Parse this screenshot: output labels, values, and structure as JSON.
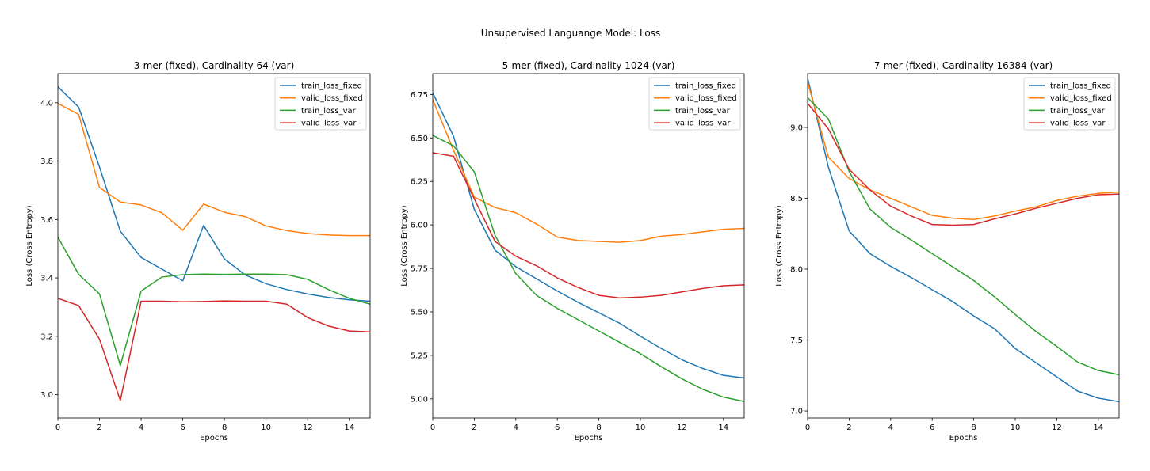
{
  "figure": {
    "suptitle": "Unsupervised Languange Model: Loss"
  },
  "colors": {
    "train_loss_fixed": "#1f77b4",
    "valid_loss_fixed": "#ff7f0e",
    "train_loss_var": "#2ca02c",
    "valid_loss_var": "#d62728"
  },
  "chart_data": [
    {
      "type": "line",
      "title": "3-mer (fixed), Cardinality 64 (var)",
      "xlabel": "Epochs",
      "ylabel": "Loss (Cross Entropy)",
      "xlim": [
        0,
        15
      ],
      "ylim": [
        2.92,
        4.1
      ],
      "xticks": [
        0,
        2,
        4,
        6,
        8,
        10,
        12,
        14
      ],
      "yticks": [
        3.0,
        3.2,
        3.4,
        3.6,
        3.8,
        4.0
      ],
      "legend": "top-right",
      "x": [
        0,
        1,
        2,
        3,
        4,
        5,
        6,
        7,
        8,
        9,
        10,
        11,
        12,
        13,
        14,
        15
      ],
      "series": [
        {
          "name": "train_loss_fixed",
          "values": [
            4.055,
            3.985,
            3.78,
            3.56,
            3.47,
            3.43,
            3.39,
            3.58,
            3.465,
            3.41,
            3.38,
            3.36,
            3.345,
            3.333,
            3.325,
            3.32
          ]
        },
        {
          "name": "valid_loss_fixed",
          "values": [
            3.998,
            3.96,
            3.71,
            3.66,
            3.65,
            3.623,
            3.563,
            3.653,
            3.625,
            3.61,
            3.578,
            3.562,
            3.552,
            3.547,
            3.545,
            3.545
          ]
        },
        {
          "name": "train_loss_var",
          "values": [
            3.54,
            3.412,
            3.345,
            3.1,
            3.355,
            3.403,
            3.411,
            3.413,
            3.412,
            3.413,
            3.413,
            3.411,
            3.395,
            3.36,
            3.33,
            3.31
          ]
        },
        {
          "name": "valid_loss_var",
          "values": [
            3.33,
            3.305,
            3.19,
            2.98,
            3.32,
            3.32,
            3.318,
            3.319,
            3.321,
            3.32,
            3.32,
            3.31,
            3.264,
            3.235,
            3.218,
            3.215
          ]
        }
      ]
    },
    {
      "type": "line",
      "title": "5-mer (fixed), Cardinality 1024 (var)",
      "xlabel": "Epochs",
      "ylabel": "Loss (Cross Entropy)",
      "xlim": [
        0,
        15
      ],
      "ylim": [
        4.89,
        6.87
      ],
      "xticks": [
        0,
        2,
        4,
        6,
        8,
        10,
        12,
        14
      ],
      "yticks": [
        5.0,
        5.25,
        5.5,
        5.75,
        6.0,
        6.25,
        6.5,
        6.75
      ],
      "legend": "top-right",
      "x": [
        0,
        1,
        2,
        3,
        4,
        5,
        6,
        7,
        8,
        9,
        10,
        11,
        12,
        13,
        14,
        15
      ],
      "series": [
        {
          "name": "train_loss_fixed",
          "values": [
            6.76,
            6.51,
            6.09,
            5.855,
            5.76,
            5.69,
            5.62,
            5.555,
            5.495,
            5.435,
            5.36,
            5.29,
            5.225,
            5.175,
            5.135,
            5.12
          ]
        },
        {
          "name": "valid_loss_fixed",
          "values": [
            6.72,
            6.43,
            6.16,
            6.1,
            6.07,
            6.005,
            5.93,
            5.91,
            5.905,
            5.9,
            5.91,
            5.935,
            5.945,
            5.96,
            5.975,
            5.98
          ]
        },
        {
          "name": "train_loss_var",
          "values": [
            6.515,
            6.455,
            6.305,
            5.94,
            5.72,
            5.595,
            5.52,
            5.455,
            5.39,
            5.325,
            5.26,
            5.185,
            5.115,
            5.055,
            5.01,
            4.985
          ]
        },
        {
          "name": "valid_loss_var",
          "values": [
            6.415,
            6.395,
            6.15,
            5.905,
            5.82,
            5.765,
            5.695,
            5.64,
            5.595,
            5.58,
            5.585,
            5.595,
            5.615,
            5.635,
            5.65,
            5.655
          ]
        }
      ]
    },
    {
      "type": "line",
      "title": "7-mer (fixed), Cardinality 16384 (var)",
      "xlabel": "Epochs",
      "ylabel": "Loss (Cross Entropy)",
      "xlim": [
        0,
        15
      ],
      "ylim": [
        6.95,
        9.38
      ],
      "xticks": [
        0,
        2,
        4,
        6,
        8,
        10,
        12,
        14
      ],
      "yticks": [
        7.0,
        7.5,
        8.0,
        8.5,
        9.0
      ],
      "legend": "top-right",
      "x": [
        0,
        1,
        2,
        3,
        4,
        5,
        6,
        7,
        8,
        9,
        10,
        11,
        12,
        13,
        14,
        15
      ],
      "series": [
        {
          "name": "train_loss_fixed",
          "values": [
            9.35,
            8.72,
            8.27,
            8.11,
            8.02,
            7.94,
            7.855,
            7.77,
            7.67,
            7.58,
            7.44,
            7.34,
            7.24,
            7.14,
            7.09,
            7.065
          ]
        },
        {
          "name": "valid_loss_fixed",
          "values": [
            9.32,
            8.79,
            8.64,
            8.56,
            8.5,
            8.44,
            8.38,
            8.36,
            8.35,
            8.375,
            8.41,
            8.44,
            8.485,
            8.515,
            8.535,
            8.545
          ]
        },
        {
          "name": "train_loss_var",
          "values": [
            9.21,
            9.06,
            8.69,
            8.425,
            8.295,
            8.205,
            8.11,
            8.015,
            7.92,
            7.805,
            7.68,
            7.56,
            7.455,
            7.345,
            7.285,
            7.255
          ]
        },
        {
          "name": "valid_loss_var",
          "values": [
            9.17,
            8.99,
            8.705,
            8.56,
            8.445,
            8.375,
            8.315,
            8.31,
            8.315,
            8.355,
            8.39,
            8.43,
            8.465,
            8.5,
            8.525,
            8.53
          ]
        }
      ]
    }
  ]
}
